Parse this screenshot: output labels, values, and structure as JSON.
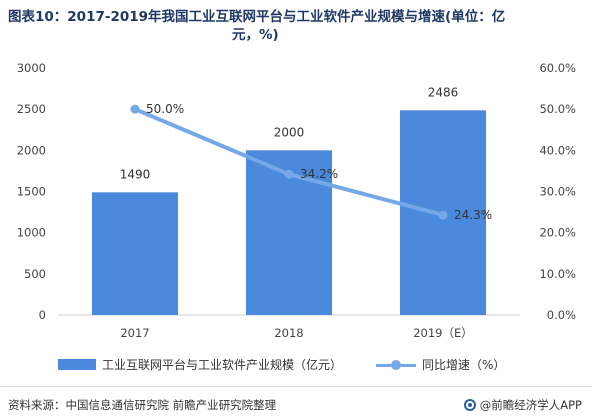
{
  "title": {
    "line1": "图表10：2017-2019年我国工业互联网平台与工业软件产业规模与增速(单位：亿",
    "line2": "元，%)"
  },
  "colors": {
    "bar": "#4a89dc",
    "line": "#74a8e6"
  },
  "chart_data": {
    "type": "bar",
    "categories": [
      "2017",
      "2018",
      "2019（E）"
    ],
    "series": [
      {
        "name": "工业互联网平台与工业软件产业规模（亿元）",
        "type": "bar",
        "axis": "left",
        "values": [
          1490,
          2000,
          2486
        ],
        "labels": [
          "1490",
          "2000",
          "2486"
        ]
      },
      {
        "name": "同比增速（%）",
        "type": "line",
        "axis": "right",
        "values": [
          50.0,
          34.2,
          24.3
        ],
        "labels": [
          "50.0%",
          "34.2%",
          "24.3%"
        ]
      }
    ],
    "ylim_left": [
      0,
      3000
    ],
    "yticks_left": [
      "0",
      "500",
      "1000",
      "1500",
      "2000",
      "2500",
      "3000"
    ],
    "ylim_right": [
      0,
      60
    ],
    "yticks_right": [
      "0.0%",
      "10.0%",
      "20.0%",
      "30.0%",
      "40.0%",
      "50.0%",
      "60.0%"
    ],
    "grid": false,
    "legend": "bottom"
  },
  "footer": {
    "source": "资料来源：中国信息通信研究院 前瞻产业研究院整理",
    "brand": "@前瞻经济学人APP"
  }
}
